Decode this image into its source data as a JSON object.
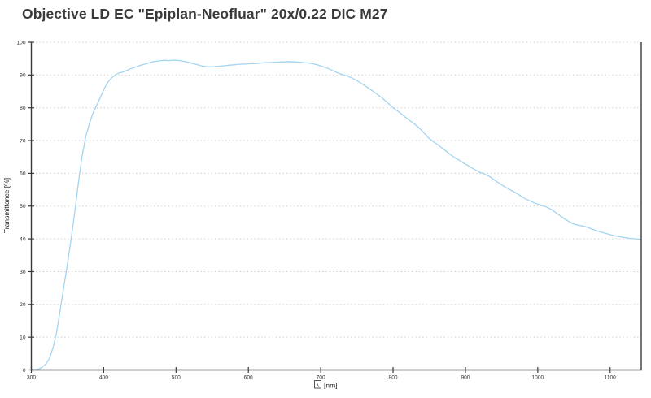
{
  "chart_data": {
    "type": "line",
    "title": "Objective LD EC \"Epiplan-Neofluar\" 20x/0.22 DIC M27",
    "ylabel": "Transmittance [%]",
    "xlabel_symbol": "λ",
    "xlabel_unit": "[nm]",
    "xlim": [
      300,
      1143
    ],
    "ylim": [
      0,
      100
    ],
    "x_ticks": [
      300,
      400,
      500,
      600,
      700,
      800,
      900,
      1000,
      1100
    ],
    "y_ticks": [
      0,
      10,
      20,
      30,
      40,
      50,
      60,
      70,
      80,
      90,
      100
    ],
    "grid": "horizontal-dotted",
    "legend": "none",
    "line_color": "#a3d4f0",
    "axis_color": "#3a3a3a",
    "grid_color": "#c9c9c9",
    "series": [
      {
        "name": "Transmittance",
        "points": [
          [
            300,
            0.0
          ],
          [
            305,
            0.1
          ],
          [
            310,
            0.3
          ],
          [
            315,
            0.8
          ],
          [
            320,
            1.8
          ],
          [
            325,
            3.5
          ],
          [
            330,
            6.8
          ],
          [
            335,
            11.5
          ],
          [
            340,
            18.5
          ],
          [
            345,
            25.5
          ],
          [
            350,
            32.5
          ],
          [
            355,
            40.0
          ],
          [
            360,
            48.0
          ],
          [
            365,
            57.0
          ],
          [
            370,
            65.0
          ],
          [
            375,
            71.0
          ],
          [
            380,
            75.0
          ],
          [
            385,
            78.3
          ],
          [
            390,
            80.6
          ],
          [
            395,
            83.0
          ],
          [
            400,
            85.5
          ],
          [
            405,
            87.6
          ],
          [
            410,
            88.9
          ],
          [
            415,
            89.9
          ],
          [
            420,
            90.5
          ],
          [
            425,
            90.8
          ],
          [
            430,
            91.2
          ],
          [
            435,
            91.7
          ],
          [
            440,
            92.1
          ],
          [
            445,
            92.5
          ],
          [
            450,
            92.9
          ],
          [
            455,
            93.2
          ],
          [
            460,
            93.5
          ],
          [
            465,
            93.9
          ],
          [
            470,
            94.1
          ],
          [
            475,
            94.3
          ],
          [
            480,
            94.4
          ],
          [
            485,
            94.5
          ],
          [
            490,
            94.4
          ],
          [
            495,
            94.5
          ],
          [
            500,
            94.5
          ],
          [
            505,
            94.4
          ],
          [
            510,
            94.2
          ],
          [
            515,
            94.0
          ],
          [
            520,
            93.7
          ],
          [
            525,
            93.4
          ],
          [
            530,
            93.1
          ],
          [
            535,
            92.8
          ],
          [
            540,
            92.6
          ],
          [
            545,
            92.5
          ],
          [
            550,
            92.5
          ],
          [
            555,
            92.6
          ],
          [
            560,
            92.7
          ],
          [
            565,
            92.8
          ],
          [
            570,
            92.9
          ],
          [
            575,
            93.0
          ],
          [
            580,
            93.1
          ],
          [
            585,
            93.2
          ],
          [
            590,
            93.3
          ],
          [
            595,
            93.3
          ],
          [
            600,
            93.4
          ],
          [
            605,
            93.5
          ],
          [
            610,
            93.5
          ],
          [
            615,
            93.6
          ],
          [
            620,
            93.7
          ],
          [
            625,
            93.8
          ],
          [
            630,
            93.8
          ],
          [
            635,
            93.9
          ],
          [
            640,
            93.9
          ],
          [
            645,
            94.0
          ],
          [
            650,
            94.0
          ],
          [
            655,
            94.1
          ],
          [
            660,
            94.0
          ],
          [
            665,
            94.0
          ],
          [
            670,
            93.9
          ],
          [
            675,
            93.8
          ],
          [
            680,
            93.7
          ],
          [
            685,
            93.6
          ],
          [
            690,
            93.4
          ],
          [
            695,
            93.1
          ],
          [
            700,
            92.8
          ],
          [
            705,
            92.4
          ],
          [
            710,
            92.0
          ],
          [
            715,
            91.5
          ],
          [
            720,
            91.0
          ],
          [
            725,
            90.5
          ],
          [
            730,
            90.1
          ],
          [
            735,
            89.8
          ],
          [
            740,
            89.4
          ],
          [
            745,
            88.9
          ],
          [
            750,
            88.3
          ],
          [
            755,
            87.6
          ],
          [
            760,
            86.9
          ],
          [
            765,
            86.2
          ],
          [
            770,
            85.4
          ],
          [
            775,
            84.6
          ],
          [
            780,
            83.8
          ],
          [
            785,
            83.0
          ],
          [
            790,
            82.0
          ],
          [
            795,
            81.0
          ],
          [
            800,
            80.0
          ],
          [
            805,
            79.2
          ],
          [
            810,
            78.4
          ],
          [
            815,
            77.5
          ],
          [
            820,
            76.6
          ],
          [
            825,
            75.8
          ],
          [
            830,
            75.0
          ],
          [
            835,
            74.0
          ],
          [
            840,
            73.0
          ],
          [
            845,
            71.8
          ],
          [
            850,
            70.6
          ],
          [
            855,
            69.8
          ],
          [
            860,
            69.0
          ],
          [
            865,
            68.2
          ],
          [
            870,
            67.3
          ],
          [
            875,
            66.5
          ],
          [
            880,
            65.6
          ],
          [
            885,
            64.8
          ],
          [
            890,
            64.2
          ],
          [
            895,
            63.5
          ],
          [
            900,
            62.8
          ],
          [
            905,
            62.2
          ],
          [
            910,
            61.5
          ],
          [
            915,
            60.9
          ],
          [
            920,
            60.3
          ],
          [
            925,
            60.0
          ],
          [
            930,
            59.4
          ],
          [
            935,
            58.8
          ],
          [
            940,
            58.0
          ],
          [
            945,
            57.2
          ],
          [
            950,
            56.5
          ],
          [
            955,
            55.8
          ],
          [
            960,
            55.2
          ],
          [
            965,
            54.6
          ],
          [
            970,
            54.0
          ],
          [
            975,
            53.3
          ],
          [
            980,
            52.6
          ],
          [
            985,
            52.0
          ],
          [
            990,
            51.5
          ],
          [
            995,
            51.0
          ],
          [
            1000,
            50.6
          ],
          [
            1005,
            50.2
          ],
          [
            1010,
            49.9
          ],
          [
            1015,
            49.4
          ],
          [
            1020,
            48.8
          ],
          [
            1025,
            48.0
          ],
          [
            1030,
            47.2
          ],
          [
            1035,
            46.4
          ],
          [
            1040,
            45.7
          ],
          [
            1045,
            45.0
          ],
          [
            1050,
            44.5
          ],
          [
            1055,
            44.2
          ],
          [
            1060,
            44.0
          ],
          [
            1065,
            43.8
          ],
          [
            1070,
            43.4
          ],
          [
            1075,
            43.0
          ],
          [
            1080,
            42.6
          ],
          [
            1085,
            42.2
          ],
          [
            1090,
            41.9
          ],
          [
            1095,
            41.6
          ],
          [
            1100,
            41.3
          ],
          [
            1105,
            41.0
          ],
          [
            1110,
            40.8
          ],
          [
            1115,
            40.6
          ],
          [
            1120,
            40.4
          ],
          [
            1125,
            40.2
          ],
          [
            1130,
            40.1
          ],
          [
            1135,
            40.0
          ],
          [
            1140,
            39.9
          ],
          [
            1143,
            39.8
          ]
        ]
      }
    ]
  }
}
